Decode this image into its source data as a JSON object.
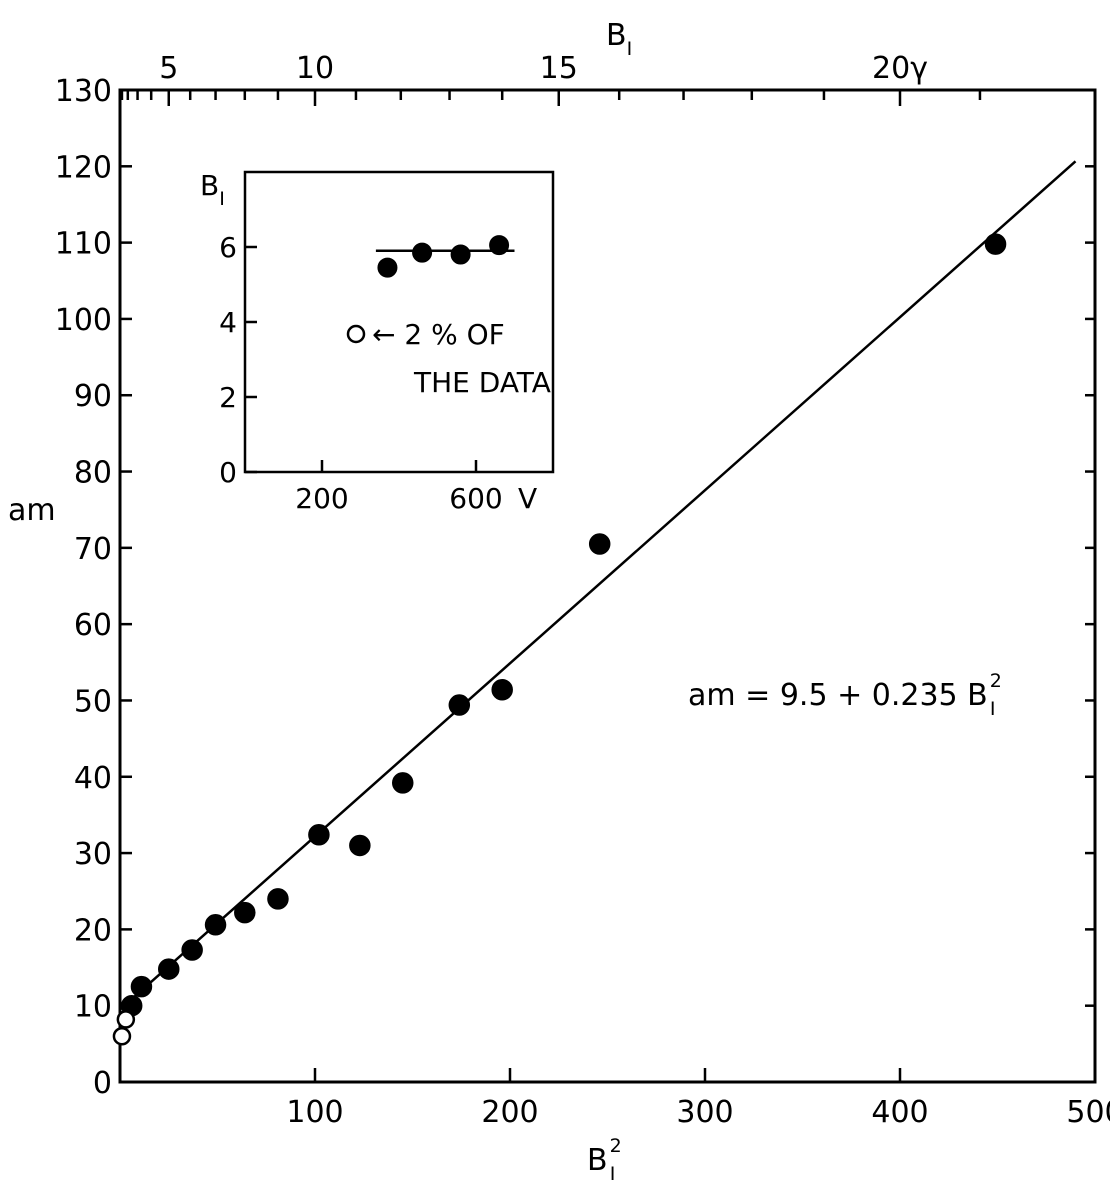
{
  "chart_data": [
    {
      "type": "scatter",
      "xlabel_main": "B",
      "xlabel_sub": "I",
      "xlabel_sup": "2",
      "top_axis_label_main": "B",
      "top_axis_label_sub": "I",
      "ylabel": "am",
      "xlim": [
        0,
        500
      ],
      "ylim": [
        0,
        130
      ],
      "x_ticks": [
        100,
        200,
        300,
        400,
        500
      ],
      "y_ticks": [
        0,
        10,
        20,
        30,
        40,
        50,
        60,
        70,
        80,
        90,
        100,
        110,
        120,
        130
      ],
      "top_ticks": [
        {
          "value": 5,
          "label": "5"
        },
        {
          "value": 10,
          "label": "10"
        },
        {
          "value": 15,
          "label": "15"
        },
        {
          "value": 20,
          "label": "20γ"
        }
      ],
      "fit_line": {
        "x": [
          0,
          490
        ],
        "y": [
          9.5,
          120.65
        ]
      },
      "equation": {
        "text": "am = 9.5 + 0.235 B",
        "sup": "2",
        "sub": "I"
      },
      "series": [
        {
          "marker": "filled",
          "x": [
            6,
            11,
            25,
            37,
            49,
            64,
            81,
            102,
            123,
            145,
            174,
            196,
            246,
            449
          ],
          "y": [
            10,
            12.5,
            14.8,
            17.3,
            20.6,
            22.2,
            24,
            32.4,
            31,
            39.2,
            49.4,
            51.4,
            70.5,
            109.8
          ]
        },
        {
          "marker": "open",
          "x": [
            3,
            1
          ],
          "y": [
            8.2,
            6
          ]
        }
      ]
    },
    {
      "type": "scatter",
      "ylabel_main": "B",
      "ylabel_sub": "I",
      "xlabel": "V",
      "xlim": [
        0,
        800
      ],
      "ylim": [
        0,
        8
      ],
      "x_ticks": [
        {
          "value": 200,
          "label": "200"
        },
        {
          "value": 600,
          "label": "600"
        }
      ],
      "y_ticks": [
        0,
        2,
        4,
        6
      ],
      "fit_line": {
        "x": [
          340,
          700
        ],
        "y": [
          5.9,
          5.9
        ]
      },
      "annotation": {
        "line1": "← 2 % OF",
        "line2": "THE DATA"
      },
      "series": [
        {
          "marker": "filled",
          "x": [
            370,
            460,
            560,
            660
          ],
          "y": [
            5.45,
            5.85,
            5.8,
            6.05
          ]
        }
      ]
    }
  ]
}
